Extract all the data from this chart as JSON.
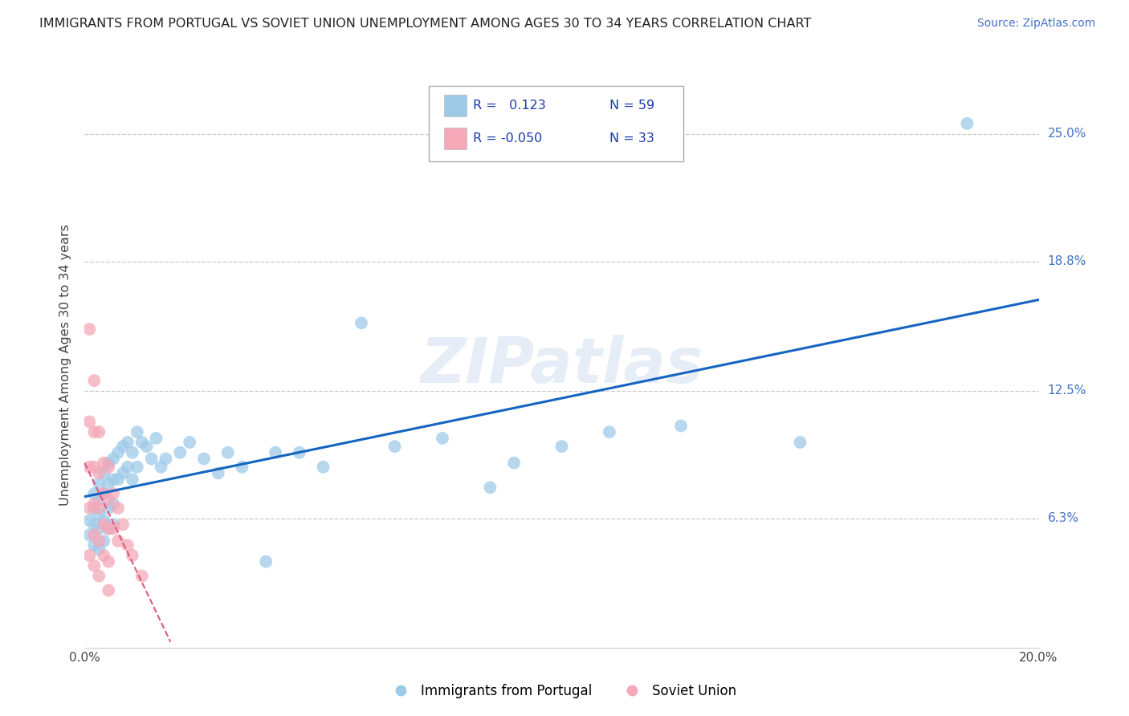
{
  "title": "IMMIGRANTS FROM PORTUGAL VS SOVIET UNION UNEMPLOYMENT AMONG AGES 30 TO 34 YEARS CORRELATION CHART",
  "source": "Source: ZipAtlas.com",
  "ylabel": "Unemployment Among Ages 30 to 34 years",
  "xlim": [
    0.0,
    0.2
  ],
  "ylim": [
    0.0,
    0.275
  ],
  "ytick_labels": [
    "6.3%",
    "12.5%",
    "18.8%",
    "25.0%"
  ],
  "ytick_positions": [
    0.063,
    0.125,
    0.188,
    0.25
  ],
  "r_portugal": 0.123,
  "n_portugal": 59,
  "r_soviet": -0.05,
  "n_soviet": 33,
  "portugal_color": "#9ECAE8",
  "soviet_color": "#F4A8B8",
  "portugal_line_color": "#1565C0",
  "soviet_line_color": "#E05880",
  "background_color": "#ffffff",
  "grid_color": "#c8c8c8",
  "watermark": "ZIPatlas",
  "portugal_x": [
    0.001,
    0.001,
    0.002,
    0.002,
    0.002,
    0.002,
    0.003,
    0.003,
    0.003,
    0.003,
    0.003,
    0.004,
    0.004,
    0.004,
    0.004,
    0.005,
    0.005,
    0.005,
    0.005,
    0.006,
    0.006,
    0.006,
    0.006,
    0.007,
    0.007,
    0.008,
    0.008,
    0.009,
    0.009,
    0.01,
    0.01,
    0.011,
    0.011,
    0.012,
    0.013,
    0.014,
    0.015,
    0.016,
    0.017,
    0.02,
    0.022,
    0.025,
    0.028,
    0.03,
    0.033,
    0.038,
    0.04,
    0.045,
    0.05,
    0.058,
    0.065,
    0.075,
    0.085,
    0.09,
    0.1,
    0.11,
    0.125,
    0.15,
    0.185
  ],
  "portugal_y": [
    0.062,
    0.055,
    0.075,
    0.068,
    0.06,
    0.05,
    0.08,
    0.072,
    0.065,
    0.058,
    0.048,
    0.085,
    0.075,
    0.062,
    0.052,
    0.09,
    0.08,
    0.068,
    0.058,
    0.092,
    0.082,
    0.07,
    0.06,
    0.095,
    0.082,
    0.098,
    0.085,
    0.1,
    0.088,
    0.095,
    0.082,
    0.105,
    0.088,
    0.1,
    0.098,
    0.092,
    0.102,
    0.088,
    0.092,
    0.095,
    0.1,
    0.092,
    0.085,
    0.095,
    0.088,
    0.042,
    0.095,
    0.095,
    0.088,
    0.158,
    0.098,
    0.102,
    0.078,
    0.09,
    0.098,
    0.105,
    0.108,
    0.1,
    0.255
  ],
  "soviet_x": [
    0.001,
    0.001,
    0.001,
    0.001,
    0.001,
    0.002,
    0.002,
    0.002,
    0.002,
    0.002,
    0.002,
    0.003,
    0.003,
    0.003,
    0.003,
    0.003,
    0.004,
    0.004,
    0.004,
    0.004,
    0.005,
    0.005,
    0.005,
    0.005,
    0.005,
    0.006,
    0.006,
    0.007,
    0.007,
    0.008,
    0.009,
    0.01,
    0.012
  ],
  "soviet_y": [
    0.155,
    0.11,
    0.088,
    0.068,
    0.045,
    0.13,
    0.105,
    0.088,
    0.07,
    0.055,
    0.04,
    0.105,
    0.085,
    0.068,
    0.052,
    0.035,
    0.09,
    0.075,
    0.06,
    0.045,
    0.088,
    0.072,
    0.058,
    0.042,
    0.028,
    0.075,
    0.058,
    0.068,
    0.052,
    0.06,
    0.05,
    0.045,
    0.035
  ]
}
